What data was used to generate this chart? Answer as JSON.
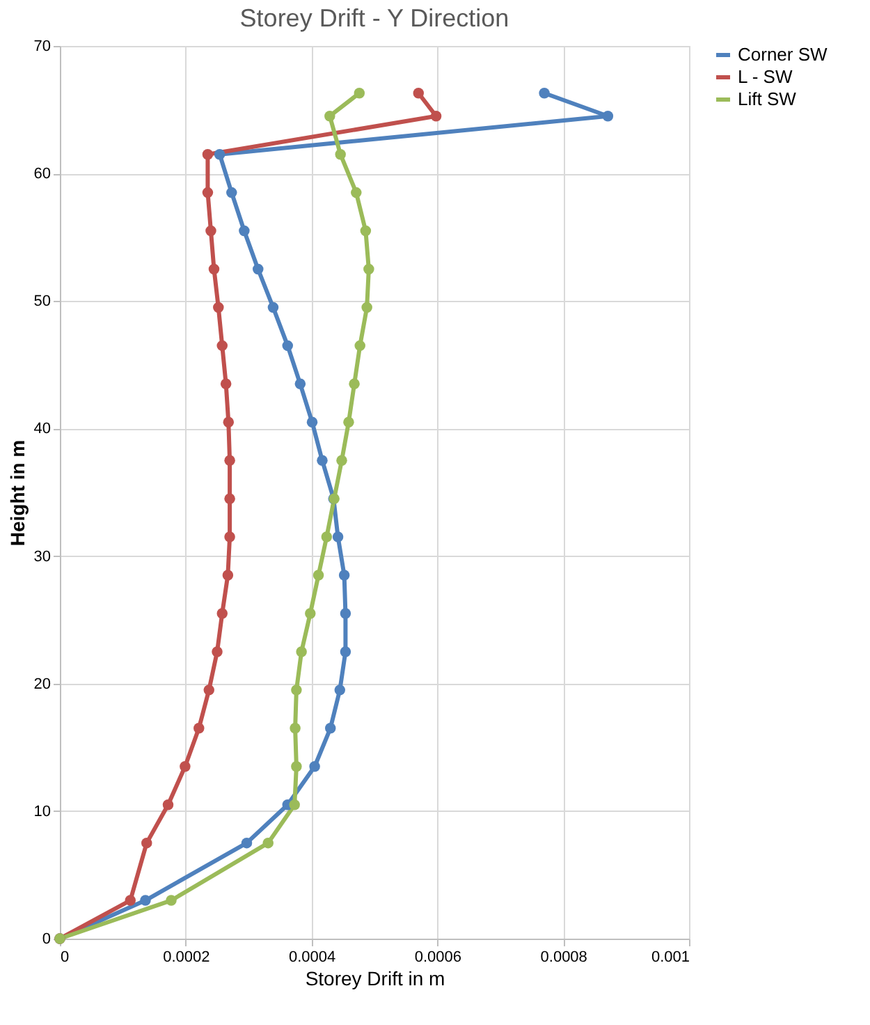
{
  "chart_data": {
    "type": "line",
    "title": "Storey Drift - Y Direction",
    "xlabel": "Storey Drift in m",
    "ylabel": "Height in m",
    "xlim": [
      0,
      0.001
    ],
    "xticks": [
      0,
      0.0002,
      0.0004,
      0.0006,
      0.0008,
      0.001
    ],
    "ylim": [
      0,
      70
    ],
    "yticks": [
      0,
      10,
      20,
      30,
      40,
      50,
      60,
      70
    ],
    "grid": true,
    "legend": "right",
    "marker": "circle",
    "line_style": "solid",
    "series": [
      {
        "name": "Corner SW",
        "color": "#4f81bd",
        "x": [
          0,
          0.000136,
          0.000297,
          0.000362,
          0.000405,
          0.00043,
          0.000445,
          0.000454,
          0.000454,
          0.000452,
          0.000442,
          0.000435,
          0.000417,
          0.000401,
          0.000382,
          0.000362,
          0.000339,
          0.000315,
          0.000293,
          0.000273,
          0.000254,
          0.000871,
          0.00077
        ],
        "values": [
          0,
          3,
          7.5,
          10.5,
          13.5,
          16.5,
          19.5,
          22.5,
          25.5,
          28.5,
          31.5,
          34.5,
          37.5,
          40.5,
          43.5,
          46.5,
          49.5,
          52.5,
          55.5,
          58.5,
          61.5,
          64.5,
          66.3
        ]
      },
      {
        "name": "L - SW",
        "color": "#c0504d",
        "x": [
          0,
          0.000112,
          0.000138,
          0.000172,
          0.000199,
          0.000221,
          0.000237,
          0.00025,
          0.000258,
          0.000267,
          0.00027,
          0.00027,
          0.00027,
          0.000268,
          0.000264,
          0.000258,
          0.000252,
          0.000245,
          0.00024,
          0.000235,
          0.000235,
          0.000598,
          0.00057
        ],
        "values": [
          0,
          3,
          7.5,
          10.5,
          13.5,
          16.5,
          19.5,
          22.5,
          25.5,
          28.5,
          31.5,
          34.5,
          37.5,
          40.5,
          43.5,
          46.5,
          49.5,
          52.5,
          55.5,
          58.5,
          61.5,
          64.5,
          66.3
        ]
      },
      {
        "name": "Lift SW",
        "color": "#9bbb59",
        "x": [
          0,
          0.000177,
          0.000331,
          0.000373,
          0.000376,
          0.000374,
          0.000376,
          0.000384,
          0.000398,
          0.000411,
          0.000424,
          0.000436,
          0.000448,
          0.000459,
          0.000468,
          0.000477,
          0.000488,
          0.000491,
          0.000486,
          0.000471,
          0.000446,
          0.000429,
          0.000476
        ],
        "values": [
          0,
          3,
          7.5,
          10.5,
          13.5,
          16.5,
          19.5,
          22.5,
          25.5,
          28.5,
          31.5,
          34.5,
          37.5,
          40.5,
          43.5,
          46.5,
          49.5,
          52.5,
          55.5,
          58.5,
          61.5,
          64.5,
          66.3
        ]
      }
    ]
  }
}
